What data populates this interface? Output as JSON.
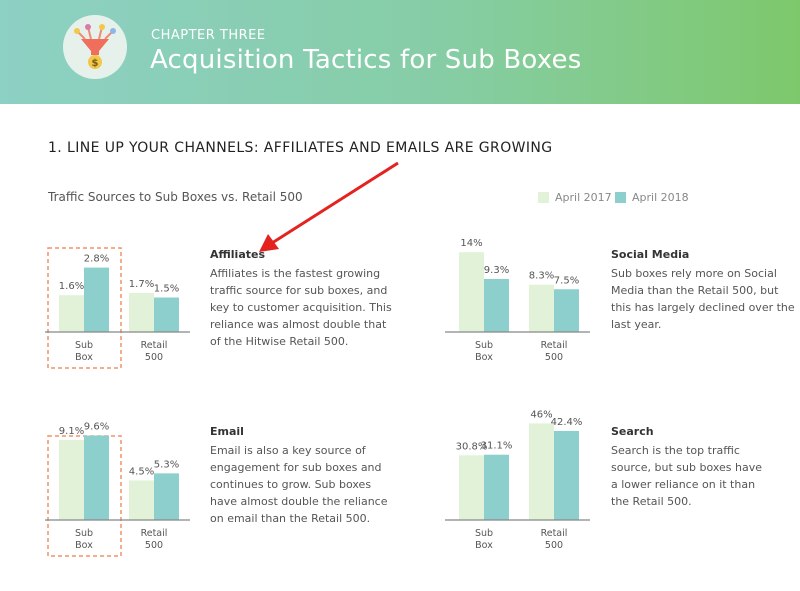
{
  "header": {
    "chapter": "CHAPTER THREE",
    "title": "Acquisition Tactics for Sub Boxes",
    "icon": "funnel-dollar-icon"
  },
  "section_heading": "1. LINE UP YOUR CHANNELS: AFFILIATES AND EMAILS ARE GROWING",
  "colors": {
    "april_2017": "#e1f2d8",
    "april_2018": "#8ccfcc",
    "highlight": "#f0926a",
    "arrow": "#e3231f",
    "axis": "#888888"
  },
  "chart_data": [
    {
      "type": "bar",
      "title": "Traffic Sources to Sub Boxes vs. Retail 500",
      "panel": "Affiliates",
      "categories": [
        "Sub Box",
        "Retail 500"
      ],
      "series": [
        {
          "name": "April 2017",
          "values": [
            1.6,
            1.7
          ],
          "labels": [
            "1.6%",
            "1.7%"
          ]
        },
        {
          "name": "April 2018",
          "values": [
            2.8,
            1.5
          ],
          "labels": [
            "2.8%",
            "1.5%"
          ]
        }
      ],
      "highlight_category": "Sub Box"
    },
    {
      "type": "bar",
      "panel": "Social Media",
      "categories": [
        "Sub Box",
        "Retail 500"
      ],
      "series": [
        {
          "name": "April 2017",
          "values": [
            14,
            8.3
          ],
          "labels": [
            "14%",
            "8.3%"
          ]
        },
        {
          "name": "April 2018",
          "values": [
            9.3,
            7.5
          ],
          "labels": [
            "9.3%",
            "7.5%"
          ]
        }
      ]
    },
    {
      "type": "bar",
      "panel": "Email",
      "categories": [
        "Sub Box",
        "Retail 500"
      ],
      "series": [
        {
          "name": "April 2017",
          "values": [
            9.1,
            4.5
          ],
          "labels": [
            "9.1%",
            "4.5%"
          ]
        },
        {
          "name": "April 2018",
          "values": [
            9.6,
            5.3
          ],
          "labels": [
            "9.6%",
            "5.3%"
          ]
        }
      ],
      "highlight_category": "Sub Box"
    },
    {
      "type": "bar",
      "panel": "Search",
      "categories": [
        "Sub Box",
        "Retail 500"
      ],
      "series": [
        {
          "name": "April 2017",
          "values": [
            30.8,
            46
          ],
          "labels": [
            "30.8%",
            "46%"
          ]
        },
        {
          "name": "April 2018",
          "values": [
            31.1,
            42.4
          ],
          "labels": [
            "31.1%",
            "42.4%"
          ]
        }
      ]
    }
  ],
  "legend": [
    "April 2017",
    "April 2018"
  ],
  "descriptions": {
    "affiliates": {
      "heading": "Affiliates",
      "text": "Affiliates is the fastest growing traffic source for sub boxes, and key to customer acquisition. This reliance was almost double that of the Hitwise Retail 500."
    },
    "social": {
      "heading": "Social Media",
      "text": "Sub boxes rely more on Social Media than the Retail 500, but this has largely declined over the last year."
    },
    "email": {
      "heading": "Email",
      "text": "Email is also a key source of engagement for sub boxes and continues to grow. Sub boxes have almost double the reliance on email than the Retail 500."
    },
    "search": {
      "heading": "Search",
      "text": "Search is the top traffic source, but sub boxes have a lower reliance on it than the Retail 500."
    }
  }
}
